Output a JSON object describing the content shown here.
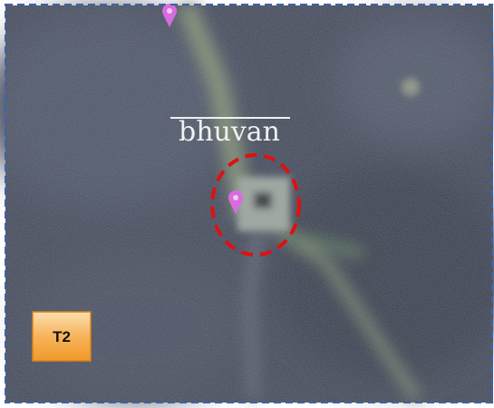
{
  "watermark": "bhuvan",
  "label": "T2"
}
